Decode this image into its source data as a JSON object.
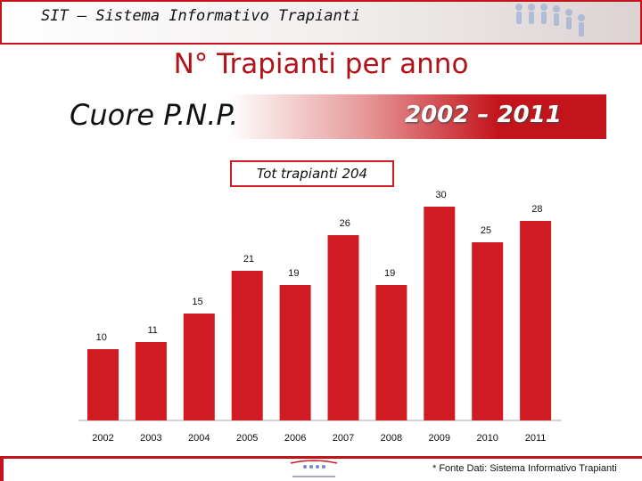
{
  "header": {
    "title": "SIT – Sistema Informativo Trapianti"
  },
  "main_title": "N° Trapianti per anno",
  "banner": {
    "left": "Cuore P.N.P.",
    "right": "2002 – 2011"
  },
  "total_label": "Tot trapianti  204",
  "footer": {
    "source": "* Fonte Dati: Sistema Informativo Trapianti"
  },
  "colors": {
    "bar": "#d11b22",
    "accent": "#c4141b"
  },
  "chart_data": {
    "type": "bar",
    "title": "",
    "xlabel": "",
    "ylabel": "",
    "categories": [
      "2002",
      "2003",
      "2004",
      "2005",
      "2006",
      "2007",
      "2008",
      "2009",
      "2010",
      "2011"
    ],
    "values": [
      10,
      11,
      15,
      21,
      19,
      26,
      19,
      30,
      25,
      28
    ],
    "ylim": [
      0,
      30
    ],
    "grid": false,
    "data_labels": true
  }
}
